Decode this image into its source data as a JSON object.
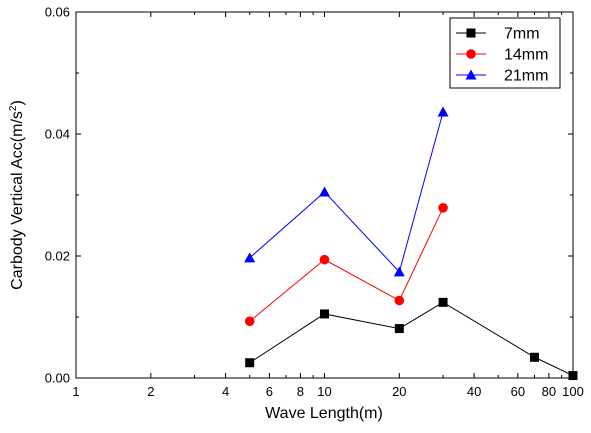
{
  "chart_data": {
    "type": "line",
    "title": "",
    "xlabel": "Wave Length(m)",
    "ylabel": "Carbody Vertical Acc(m/s",
    "ylabel_superscript": "2",
    "ylabel_suffix": ")",
    "xscale": "log",
    "xlim": [
      1,
      100
    ],
    "ylim": [
      0,
      0.06
    ],
    "x_ticks": [
      1,
      2,
      4,
      6,
      8,
      10,
      20,
      40,
      60,
      80,
      100
    ],
    "x_tick_labels": [
      "1",
      "2",
      "4",
      "6",
      "8",
      "10",
      "20",
      "40",
      "60",
      "80",
      "100"
    ],
    "y_ticks": [
      0,
      0.02,
      0.04,
      0.06
    ],
    "y_tick_labels": [
      "0.00",
      "0.02",
      "0.04",
      "0.06"
    ],
    "legend_position": "top-right",
    "grid": false,
    "series": [
      {
        "name": "7mm",
        "color": "#000000",
        "marker": "square",
        "x": [
          5,
          10,
          20,
          30,
          70,
          100
        ],
        "values": [
          0.0025,
          0.0105,
          0.0081,
          0.0124,
          0.0034,
          0.0004
        ]
      },
      {
        "name": "14mm",
        "color": "#ff0000",
        "marker": "circle",
        "x": [
          5,
          10,
          20,
          30
        ],
        "values": [
          0.0093,
          0.0194,
          0.0127,
          0.0279
        ]
      },
      {
        "name": "21mm",
        "color": "#0000ff",
        "marker": "triangle",
        "x": [
          5,
          10,
          20,
          30
        ],
        "values": [
          0.0197,
          0.0305,
          0.0174,
          0.0436
        ]
      }
    ]
  }
}
